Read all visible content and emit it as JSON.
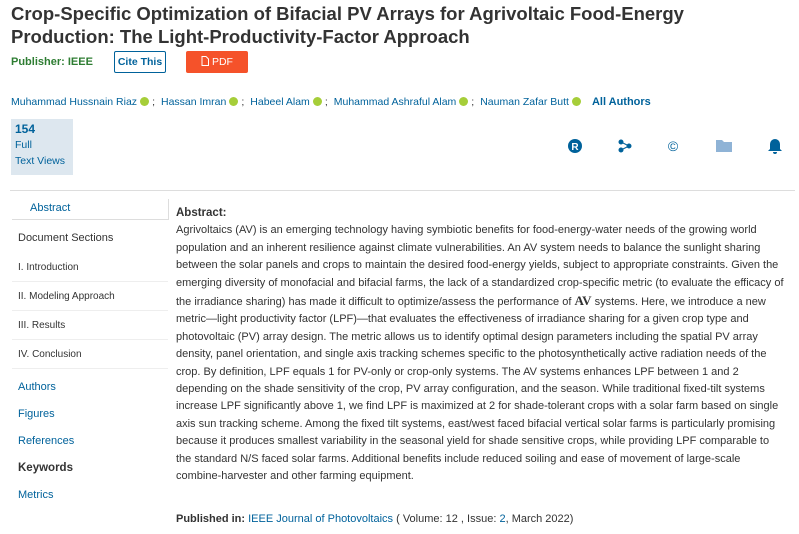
{
  "header": {
    "title": "Crop-Specific Optimization of Bifacial PV Arrays for Agrivoltaic Food-Energy Production: The Light-Productivity-Factor Approach",
    "publisher_label": "Publisher:",
    "publisher": "IEEE",
    "cite": "Cite This",
    "pdf": "PDF"
  },
  "authors": {
    "names": [
      "Muhammad Hussnain Riaz",
      "Hassan Imran",
      "Habeel Alam",
      "Muhammad Ashraful Alam",
      "Nauman Zafar Butt"
    ],
    "separator": ";",
    "all": "All Authors"
  },
  "metrics": {
    "count": "154",
    "line1": "Full",
    "line2": "Text Views"
  },
  "toolbar": {
    "rights": "R",
    "copyright": "©"
  },
  "nav": {
    "abstract": "Abstract",
    "sections_title": "Document Sections",
    "sections": [
      "I. Introduction",
      "II. Modeling Approach",
      "III. Results",
      "IV. Conclusion"
    ],
    "links": [
      "Authors",
      "Figures",
      "References",
      "Keywords",
      "Metrics"
    ]
  },
  "abstract": {
    "heading": "Abstract:",
    "text_1": "Agrivoltaics (AV) is an emerging technology having symbiotic benefits for food-energy-water needs of the growing world population and an inherent resilience against climate vulnerabilities. An AV system needs to balance the sunlight sharing between the solar panels and crops to maintain the desired food-energy yields, subject to appropriate constraints. Given the emerging diversity of monofacial and bifacial farms, the lack of a standardized crop-specific metric (to evaluate the efficacy of the irradiance sharing) has made it difficult to optimize/assess the performance of ",
    "math": "AV",
    "text_2": " systems. Here, we introduce a new metric—light productivity factor (LPF)—that evaluates the effectiveness of irradiance sharing for a given crop type and photovoltaic (PV) array design. The metric allows us to identify optimal design parameters including the spatial PV array density, panel orientation, and single axis tracking schemes specific to the photosynthetically active radiation needs of the crop. By definition, LPF equals 1 for PV-only or crop-only systems. The AV systems enhances LPF between 1 and 2 depending on the shade sensitivity of the crop, PV array configuration, and the season. While traditional fixed-tilt systems increase LPF significantly above 1, we find LPF is maximized at 2 for shade-tolerant crops with a solar farm based on single axis sun tracking scheme. Among the fixed tilt systems, east/west faced bifacial vertical solar farms is particularly promising because it produces smallest variability in the seasonal yield for shade sensitive crops, while providing LPF comparable to the standard N/S faced solar farms. Additional benefits include reduced soiling and ease of movement of large-scale combine-harvester and other farming equipment."
  },
  "published": {
    "label": "Published in:",
    "journal": "IEEE Journal of Photovoltaics",
    "volume_label": " ( Volume: ",
    "volume": "12",
    "issue_label": " , Issue: ",
    "issue": "2",
    "date": ", March 2022)"
  }
}
